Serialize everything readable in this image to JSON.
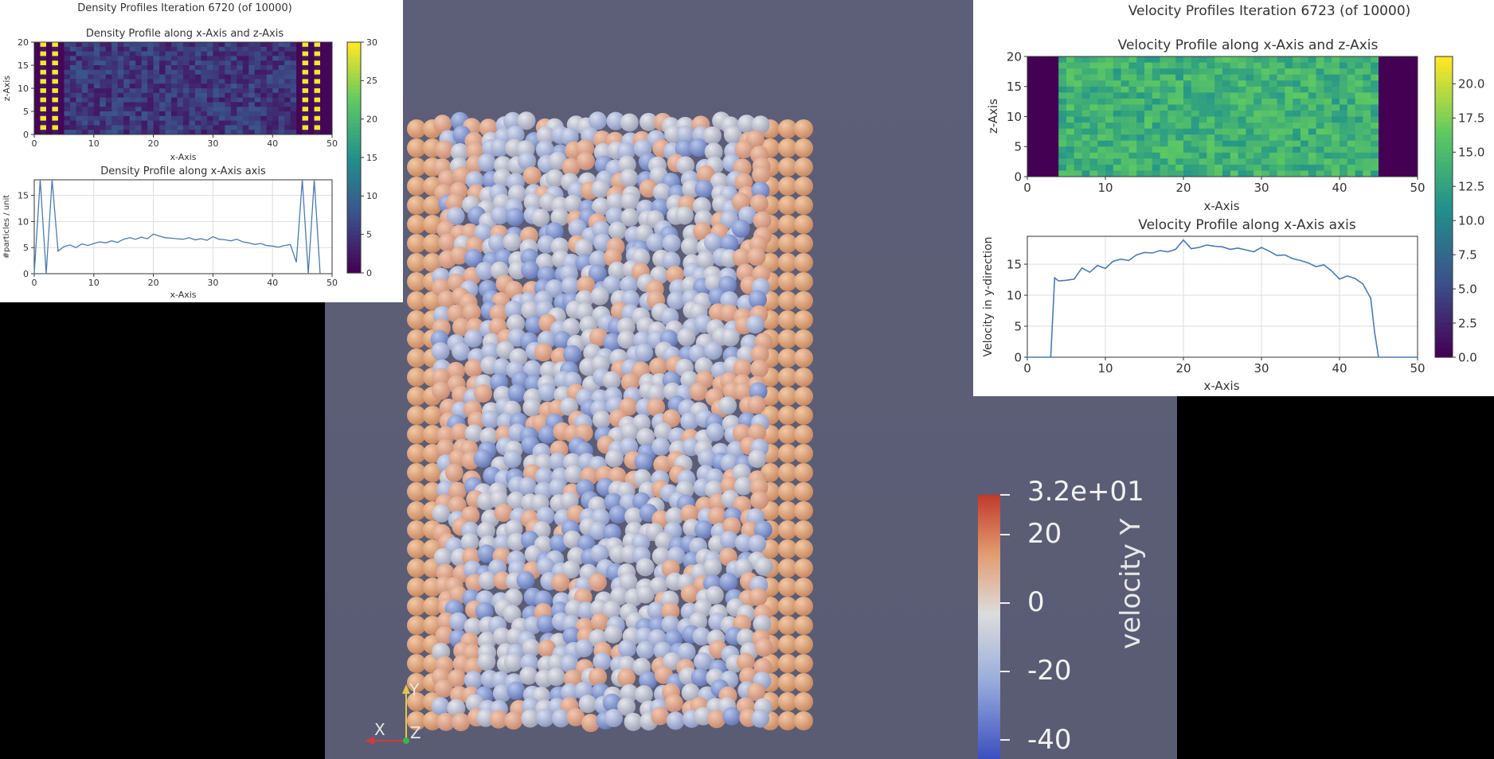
{
  "density": {
    "title": "Density Profiles Iteration 6720 (of 10000)",
    "heatmap_title": "Density Profile along x-Axis and z-Axis",
    "heatmap_xlabel": "x-Axis",
    "heatmap_ylabel": "z-Axis",
    "line_title": "Density Profile along x-Axis axis",
    "line_xlabel": "x-Axis",
    "line_ylabel": "#particles / unit",
    "colorbar_ticks": [
      "0",
      "5",
      "10",
      "15",
      "20",
      "25",
      "30"
    ]
  },
  "velocity": {
    "title": "Velocity Profiles Iteration 6723 (of 10000)",
    "heatmap_title": "Velocity Profile along x-Axis and z-Axis",
    "heatmap_xlabel": "x-Axis",
    "heatmap_ylabel": "z-Axis",
    "line_title": "Velocity Profile along x-Axis axis",
    "line_xlabel": "x-Axis",
    "line_ylabel": "Velocity in y-direction",
    "colorbar_ticks": [
      "0.0",
      "2.5",
      "5.0",
      "7.5",
      "10.0",
      "12.5",
      "15.0",
      "17.5",
      "20.0"
    ]
  },
  "scene": {
    "colorbar_title": "velocity Y",
    "colorbar_labels": [
      "3.2e+01",
      "20",
      "0",
      "-20",
      "-40"
    ],
    "axes": {
      "x": "X",
      "y": "Y",
      "z": "Z"
    }
  },
  "chart_data": [
    {
      "type": "heatmap",
      "title": "Density Profile along x-Axis and z-Axis",
      "xlabel": "x-Axis",
      "ylabel": "z-Axis",
      "xlim": [
        0,
        50
      ],
      "ylim": [
        0,
        20
      ],
      "x_ticks": [
        0,
        10,
        20,
        30,
        40,
        50
      ],
      "y_ticks": [
        0,
        5,
        10,
        15,
        20
      ],
      "colorbar": {
        "range": [
          0,
          30
        ],
        "ticks": [
          0,
          5,
          10,
          15,
          20,
          25,
          30
        ],
        "colormap": "viridis"
      },
      "description_values": {
        "bulk": 5,
        "wall_columns_x": [
          1,
          3,
          45,
          47
        ],
        "wall_value": 30
      }
    },
    {
      "type": "line",
      "title": "Density Profile along x-Axis axis",
      "xlabel": "x-Axis",
      "ylabel": "#particles / unit",
      "xlim": [
        0,
        50
      ],
      "ylim": [
        0,
        18
      ],
      "x_ticks": [
        0,
        10,
        20,
        30,
        40,
        50
      ],
      "y_ticks": [
        0,
        5,
        10,
        15
      ],
      "x": [
        0,
        1,
        2,
        3,
        4,
        5,
        6,
        7,
        8,
        9,
        10,
        11,
        12,
        13,
        14,
        15,
        16,
        17,
        18,
        19,
        20,
        21,
        22,
        23,
        24,
        25,
        26,
        27,
        28,
        29,
        30,
        31,
        32,
        33,
        34,
        35,
        36,
        37,
        38,
        39,
        40,
        41,
        42,
        43,
        44,
        45,
        46,
        47,
        48
      ],
      "y": [
        0,
        18,
        0,
        18,
        4.3,
        5.2,
        5.5,
        5.0,
        5.7,
        5.4,
        5.8,
        6.1,
        5.9,
        6.3,
        6.0,
        6.6,
        6.9,
        6.6,
        7.0,
        6.7,
        7.6,
        7.2,
        6.9,
        6.8,
        6.7,
        6.6,
        6.9,
        6.5,
        6.7,
        6.4,
        7.1,
        6.6,
        6.5,
        6.3,
        6.6,
        6.1,
        5.9,
        5.6,
        5.8,
        5.4,
        5.3,
        5.1,
        5.4,
        5.6,
        2.2,
        18,
        0,
        18,
        0
      ]
    },
    {
      "type": "heatmap",
      "title": "Velocity Profile along x-Axis and z-Axis",
      "xlabel": "x-Axis",
      "ylabel": "z-Axis",
      "xlim": [
        0,
        50
      ],
      "ylim": [
        0,
        20
      ],
      "x_ticks": [
        0,
        10,
        20,
        30,
        40,
        50
      ],
      "y_ticks": [
        0,
        5,
        10,
        15,
        20
      ],
      "colorbar": {
        "range": [
          0,
          22
        ],
        "ticks": [
          0.0,
          2.5,
          5.0,
          7.5,
          10.0,
          12.5,
          15.0,
          17.5,
          20.0
        ],
        "colormap": "viridis"
      },
      "description_values": {
        "zero_region_x": [
          [
            0,
            4
          ],
          [
            45,
            50
          ]
        ],
        "bulk": 14
      }
    },
    {
      "type": "line",
      "title": "Velocity Profile along x-Axis axis",
      "xlabel": "x-Axis",
      "ylabel": "Velocity in y-direction",
      "xlim": [
        0,
        50
      ],
      "ylim": [
        0,
        19.5
      ],
      "x_ticks": [
        0,
        10,
        20,
        30,
        40,
        50
      ],
      "y_ticks": [
        0,
        5,
        10,
        15
      ],
      "x": [
        0,
        3,
        3.5,
        4,
        5,
        6,
        7,
        8,
        9,
        10,
        11,
        12,
        13,
        14,
        15,
        16,
        17,
        18,
        19,
        20,
        21,
        22,
        23,
        24,
        25,
        26,
        27,
        28,
        29,
        30,
        31,
        32,
        33,
        34,
        35,
        36,
        37,
        38,
        39,
        40,
        41,
        42,
        43,
        44,
        44.5,
        45,
        50
      ],
      "y": [
        0,
        0,
        12.8,
        12.3,
        12.4,
        12.6,
        14.4,
        13.7,
        14.8,
        14.3,
        15.5,
        15.8,
        15.6,
        16.5,
        16.9,
        16.8,
        17.2,
        17.0,
        17.4,
        18.9,
        17.5,
        17.7,
        18.1,
        17.9,
        17.8,
        17.4,
        17.6,
        17.3,
        17.0,
        17.7,
        17.1,
        16.4,
        16.5,
        15.9,
        15.6,
        15.2,
        14.6,
        14.9,
        13.9,
        12.6,
        13.1,
        12.7,
        11.8,
        9.5,
        4.0,
        0,
        0
      ]
    }
  ]
}
